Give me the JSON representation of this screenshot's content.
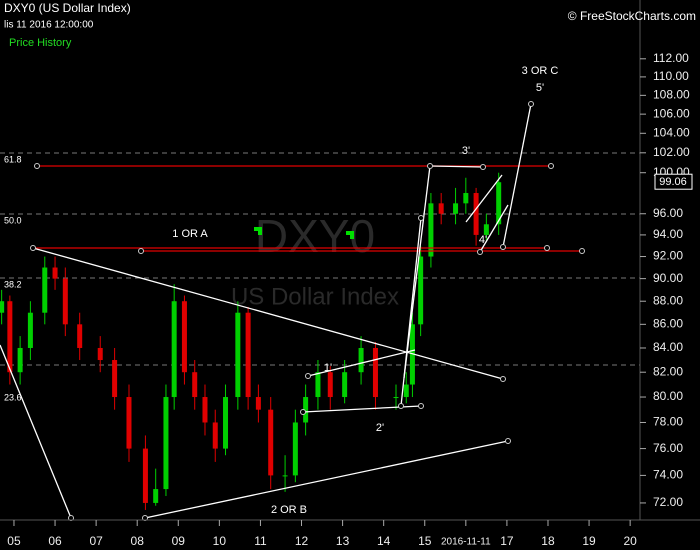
{
  "chart_data": {
    "type": "candlestick",
    "title": "DXY0 (US Dollar Index)",
    "timestamp": "lis 11 2016 12:00:00",
    "panel_label": "Price History",
    "copyright": "© FreeStockCharts.com",
    "watermark": {
      "symbol": "DXY0",
      "name": "US Dollar Index"
    },
    "fib_levels": [
      "61.8",
      "50.0",
      "38.2",
      "23.6"
    ],
    "annotations": [
      "3 OR C",
      "5'",
      "3'",
      "4'",
      "1 OR A",
      "1'",
      "2'",
      "2 OR B"
    ],
    "x": [
      2004.7,
      2004.9,
      2005.15,
      2005.4,
      2005.75,
      2006.0,
      2006.25,
      2006.6,
      2007.1,
      2007.45,
      2007.8,
      2008.2,
      2008.45,
      2008.7,
      2008.9,
      2009.15,
      2009.4,
      2009.65,
      2009.9,
      2010.15,
      2010.45,
      2010.7,
      2010.95,
      2011.25,
      2011.6,
      2011.85,
      2012.1,
      2012.4,
      2012.7,
      2013.05,
      2013.45,
      2013.8,
      2014.3,
      2014.55,
      2014.7,
      2014.9,
      2015.15,
      2015.4,
      2015.75,
      2016.0,
      2016.25,
      2016.5,
      2016.8
    ],
    "open": [
      87,
      88,
      82,
      84,
      87,
      91,
      90,
      86,
      84,
      83,
      80,
      76,
      72,
      73,
      80,
      88,
      82,
      80,
      78,
      76,
      80,
      87,
      80,
      79,
      74,
      74,
      78,
      80,
      82,
      80,
      82,
      84,
      80,
      80,
      81,
      86,
      92,
      97,
      96,
      97,
      98,
      94,
      95
    ],
    "high": [
      89,
      88.5,
      85,
      88,
      92,
      92,
      91,
      87,
      85,
      84,
      81,
      77,
      74.5,
      81,
      89.5,
      88.5,
      83,
      81,
      79,
      81,
      88,
      87.5,
      81,
      80,
      75.5,
      79,
      81,
      83,
      82.5,
      83,
      85,
      84.5,
      81,
      82,
      87,
      93,
      98,
      98,
      98.5,
      99.5,
      98.5,
      96,
      100
    ],
    "low": [
      86,
      81,
      81,
      83,
      86,
      89,
      85,
      83,
      82,
      79,
      75,
      71.5,
      71.8,
      72.5,
      79,
      81,
      79,
      77,
      75,
      75.5,
      79,
      79,
      78,
      73,
      72.8,
      73.5,
      77,
      79,
      79,
      79.5,
      81,
      79,
      79,
      79.5,
      80,
      85,
      91,
      95,
      95,
      96,
      93,
      93.5,
      94
    ],
    "close": [
      88,
      82,
      84,
      87,
      91,
      90,
      86,
      84,
      83,
      80,
      76,
      72,
      73,
      80,
      88,
      82,
      80,
      78,
      76,
      80,
      87,
      80,
      79,
      74,
      74,
      78,
      80,
      82,
      80,
      82,
      84,
      80,
      80,
      81,
      86,
      92,
      97,
      96,
      97,
      98,
      94,
      95,
      99.06
    ],
    "up_color": "#00d000",
    "down_color": "#e00000",
    "log_scale": true,
    "xlim": [
      2004.66,
      2020.24
    ],
    "xticks": [
      {
        "value": 2005,
        "label": "05"
      },
      {
        "value": 2006,
        "label": "06"
      },
      {
        "value": 2007,
        "label": "07"
      },
      {
        "value": 2008,
        "label": "08"
      },
      {
        "value": 2009,
        "label": "09"
      },
      {
        "value": 2010,
        "label": "10"
      },
      {
        "value": 2011,
        "label": "11"
      },
      {
        "value": 2012,
        "label": "12"
      },
      {
        "value": 2013,
        "label": "13"
      },
      {
        "value": 2014,
        "label": "14"
      },
      {
        "value": 2015,
        "label": "15"
      },
      {
        "value": 2016,
        "label": "2016-11-11"
      },
      {
        "value": 2017,
        "label": "17"
      },
      {
        "value": 2018,
        "label": "18"
      },
      {
        "value": 2019,
        "label": "19"
      },
      {
        "value": 2020,
        "label": "20"
      }
    ],
    "ylim": [
      71,
      114
    ],
    "yticks": [
      {
        "value": 72,
        "label": "72.00"
      },
      {
        "value": 74,
        "label": "74.00"
      },
      {
        "value": 76,
        "label": "76.00"
      },
      {
        "value": 78,
        "label": "78.00"
      },
      {
        "value": 80,
        "label": "80.00"
      },
      {
        "value": 82,
        "label": "82.00"
      },
      {
        "value": 84,
        "label": "84.00"
      },
      {
        "value": 86,
        "label": "86.00"
      },
      {
        "value": 88,
        "label": "88.00"
      },
      {
        "value": 90,
        "label": "90.00"
      },
      {
        "value": 92,
        "label": "92.00"
      },
      {
        "value": 94,
        "label": "94.00"
      },
      {
        "value": 96,
        "label": "96.00"
      },
      {
        "value": 100,
        "label": "100.00"
      },
      {
        "value": 102,
        "label": "102.00"
      },
      {
        "value": 104,
        "label": "104.00"
      },
      {
        "value": 106,
        "label": "106.00"
      },
      {
        "value": 108,
        "label": "108.00"
      },
      {
        "value": 110,
        "label": "110.00"
      },
      {
        "value": 112,
        "label": "112.00"
      }
    ]
  }
}
